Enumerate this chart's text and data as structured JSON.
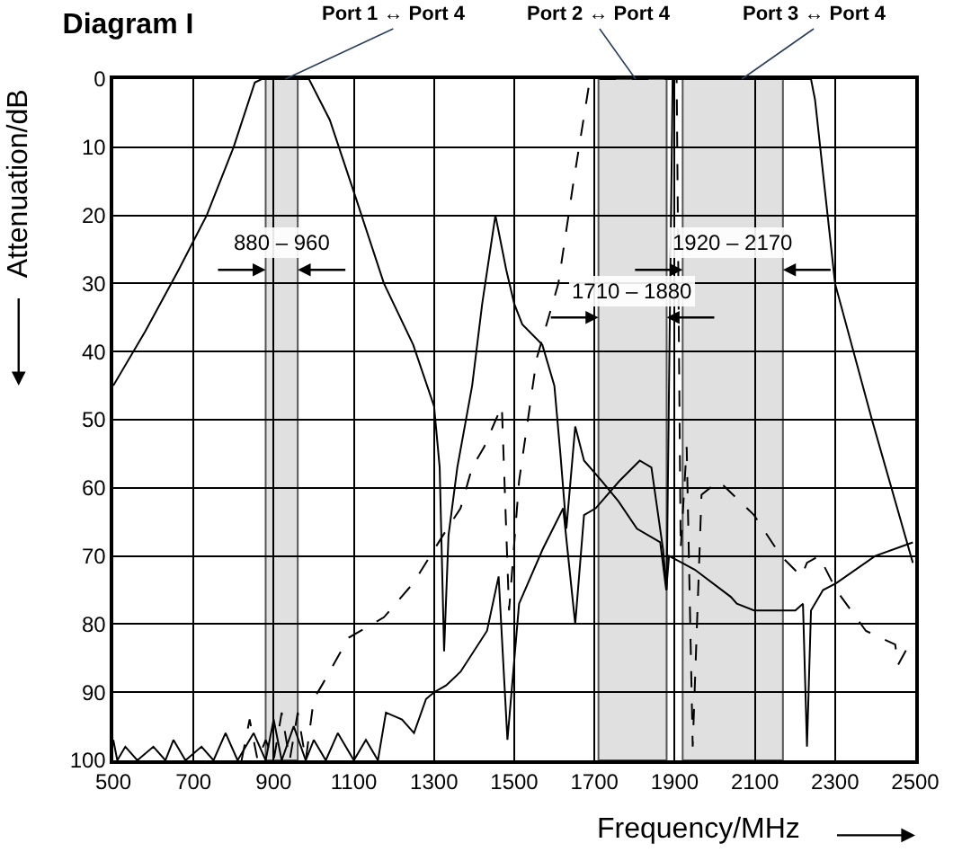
{
  "chart_data": {
    "type": "line",
    "title": "Diagram I",
    "xlabel": "Frequency/MHz",
    "ylabel": "Attenuation/dB",
    "xlim": [
      500,
      2500
    ],
    "xticks": [
      500,
      700,
      900,
      1100,
      1300,
      1500,
      1700,
      1900,
      2100,
      2300,
      2500
    ],
    "ylim": [
      100,
      0
    ],
    "yticks": [
      0,
      10,
      20,
      30,
      40,
      50,
      60,
      70,
      80,
      90,
      100
    ],
    "grid": true,
    "legend": false,
    "marker": "none",
    "bands": [
      {
        "axis": "x",
        "from": 880,
        "to": 960,
        "label": "880 – 960",
        "color": "#e0e0e0"
      },
      {
        "axis": "x",
        "from": 1710,
        "to": 1880,
        "label": "1710 – 1880",
        "color": "#e0e0e0"
      },
      {
        "axis": "x",
        "from": 1920,
        "to": 2170,
        "label": "1920 – 2170",
        "color": "#e0e0e0"
      }
    ],
    "series": [
      {
        "name": "Port 1 ↔ Port 4",
        "color": "#000000",
        "line_style": "solid",
        "x": [
          500,
          580,
          663,
          733,
          800,
          853,
          870,
          920,
          988,
          1040,
          1108,
          1175,
          1248,
          1300,
          1314,
          1325,
          1336,
          1358,
          1395,
          1420,
          1453,
          1480,
          1500,
          1520,
          1570,
          1600,
          1615,
          1630,
          1652,
          1674,
          1718,
          1760,
          1806,
          1864,
          1879,
          1886,
          1950,
          2040,
          2055,
          2098,
          2201,
          2220,
          2230,
          2240,
          2270,
          2303,
          2400,
          2494
        ],
        "values": [
          45,
          37,
          28,
          20,
          10,
          0.5,
          0,
          0,
          0,
          6,
          18,
          30,
          39,
          48,
          57,
          84,
          67,
          57,
          45,
          33,
          20,
          28,
          33,
          36,
          39,
          45,
          55,
          66,
          51,
          56,
          59,
          62,
          66,
          68,
          75,
          70,
          72,
          76,
          77,
          78,
          78,
          77,
          98,
          78,
          75,
          74,
          70,
          68
        ]
      },
      {
        "name": "Port 2 ↔ Port 4",
        "color": "#000000",
        "line_style": "dashed",
        "x": [
          820,
          840,
          860,
          880,
          900,
          920,
          940,
          960,
          980,
          1000,
          1020,
          1087,
          1175,
          1248,
          1322,
          1366,
          1395,
          1425,
          1454,
          1469,
          1487,
          1512,
          1556,
          1610,
          1648,
          1686,
          1700,
          1800,
          1905,
          1915,
          1930,
          1945,
          1967,
          2010,
          2098,
          2165,
          2216,
          2230,
          2260,
          2303,
          2377,
          2450,
          2457,
          2494
        ],
        "values": [
          100,
          94,
          100,
          97,
          100,
          93,
          100,
          93,
          100,
          91,
          89,
          82,
          79,
          74,
          67,
          63,
          57,
          54,
          50,
          48,
          78,
          59,
          41,
          30,
          15,
          1,
          0,
          0,
          0,
          69,
          54,
          98,
          61,
          59,
          64,
          70,
          73,
          71,
          70,
          75,
          81,
          83,
          86,
          82
        ]
      },
      {
        "name": "Port 3 ↔ Port 4",
        "color": "#000000",
        "line_style": "solid",
        "x": [
          500,
          510,
          530,
          560,
          600,
          630,
          650,
          680,
          720,
          750,
          780,
          810,
          850,
          880,
          900,
          920,
          950,
          980,
          1000,
          1030,
          1060,
          1100,
          1130,
          1160,
          1180,
          1220,
          1250,
          1280,
          1300,
          1330,
          1366,
          1432,
          1461,
          1483,
          1512,
          1571,
          1622,
          1652,
          1674,
          1703,
          1762,
          1813,
          1842,
          1871,
          1880,
          1895,
          1910,
          2100,
          2240,
          2250,
          2300,
          2392,
          2494
        ],
        "values": [
          97,
          100,
          98,
          100,
          98,
          100,
          97,
          100,
          98,
          100,
          96,
          100,
          96,
          100,
          94,
          100,
          95,
          100,
          97,
          100,
          96,
          100,
          97,
          100,
          93,
          94,
          96,
          91,
          90,
          89,
          87,
          81,
          73,
          97,
          77,
          69,
          63,
          80,
          64,
          63,
          59,
          56,
          57,
          69,
          75,
          0,
          0,
          0,
          0,
          3,
          30,
          50,
          71
        ]
      }
    ]
  }
}
